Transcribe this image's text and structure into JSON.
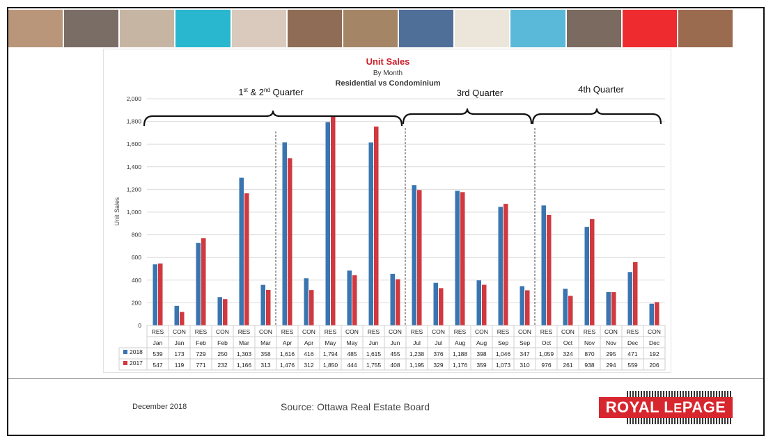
{
  "footer": {
    "date": "December 2018",
    "source": "Source: Ottawa Real Estate Board",
    "logo_text": "ROYAL LEPAGE"
  },
  "photo_strip": {
    "photos": [
      "family-photo",
      "phone-photo",
      "couple-photo",
      "teal-panel",
      "woman-phone-photo",
      "couple-smiling-photo",
      "house-photo",
      "keyboard-photo",
      "blank-panel",
      "pool-photo",
      "family-laptop-photo",
      "red-panel",
      "child-photo"
    ],
    "colors": [
      "#b9967a",
      "#7a6d66",
      "#c7b5a3",
      "#29b6cf",
      "#d9cabd",
      "#8f6c55",
      "#a48565",
      "#4f6f99",
      "#ece6da",
      "#5ab8d8",
      "#7b6a5f",
      "#ee2b2f",
      "#9a6b4f"
    ]
  },
  "chart_data": {
    "type": "bar",
    "title": "Unit Sales",
    "subtitle": "By Month",
    "subtitle2": "Residential vs Condominium",
    "ylabel": "Unit Sales",
    "ylim": [
      0,
      2000
    ],
    "yticks": [
      "0",
      "200",
      "400",
      "600",
      "800",
      "1,000",
      "1,200",
      "1,400",
      "1,600",
      "1,800",
      "2,000"
    ],
    "grid": true,
    "categories_type": [
      "RES",
      "CON",
      "RES",
      "CON",
      "RES",
      "CON",
      "RES",
      "CON",
      "RES",
      "CON",
      "RES",
      "CON",
      "RES",
      "CON",
      "RES",
      "CON",
      "RES",
      "CON",
      "RES",
      "CON",
      "RES",
      "CON",
      "RES",
      "CON"
    ],
    "categories_month": [
      "Jan",
      "Jan",
      "Feb",
      "Feb",
      "Mar",
      "Mar",
      "Apr",
      "Apr",
      "May",
      "May",
      "Jun",
      "Jun",
      "Jul",
      "Jul",
      "Aug",
      "Aug",
      "Sep",
      "Sep",
      "Oct",
      "Oct",
      "Nov",
      "Nov",
      "Dec",
      "Dec"
    ],
    "series": [
      {
        "name": "2018",
        "color": "#3a75b0",
        "values": [
          539,
          173,
          729,
          250,
          1303,
          358,
          1616,
          416,
          1794,
          485,
          1615,
          455,
          1238,
          376,
          1188,
          398,
          1046,
          347,
          1059,
          324,
          870,
          295,
          471,
          192
        ],
        "labels": [
          "539",
          "173",
          "729",
          "250",
          "1,303",
          "358",
          "1,616",
          "416",
          "1,794",
          "485",
          "1,615",
          "455",
          "1,238",
          "376",
          "1,188",
          "398",
          "1,046",
          "347",
          "1,059",
          "324",
          "870",
          "295",
          "471",
          "192"
        ]
      },
      {
        "name": "2017",
        "color": "#d0393f",
        "values": [
          547,
          119,
          771,
          232,
          1166,
          313,
          1476,
          312,
          1850,
          444,
          1755,
          408,
          1195,
          329,
          1176,
          359,
          1073,
          310,
          976,
          261,
          938,
          294,
          559,
          206
        ],
        "labels": [
          "547",
          "119",
          "771",
          "232",
          "1,166",
          "313",
          "1,476",
          "312",
          "1,850",
          "444",
          "1,755",
          "408",
          "1,195",
          "329",
          "1,176",
          "359",
          "1,073",
          "310",
          "976",
          "261",
          "938",
          "294",
          "559",
          "206"
        ]
      }
    ],
    "quarters": [
      {
        "label_main": "1",
        "label_sup1": "st",
        "label_mid": " & 2",
        "label_sup2": "nd",
        "label_end": " Quarter",
        "start": 0,
        "end": 11
      },
      {
        "label_main": "3rd Quarter",
        "start": 12,
        "end": 17
      },
      {
        "label_main": "4th Quarter",
        "start": 18,
        "end": 23
      }
    ]
  }
}
